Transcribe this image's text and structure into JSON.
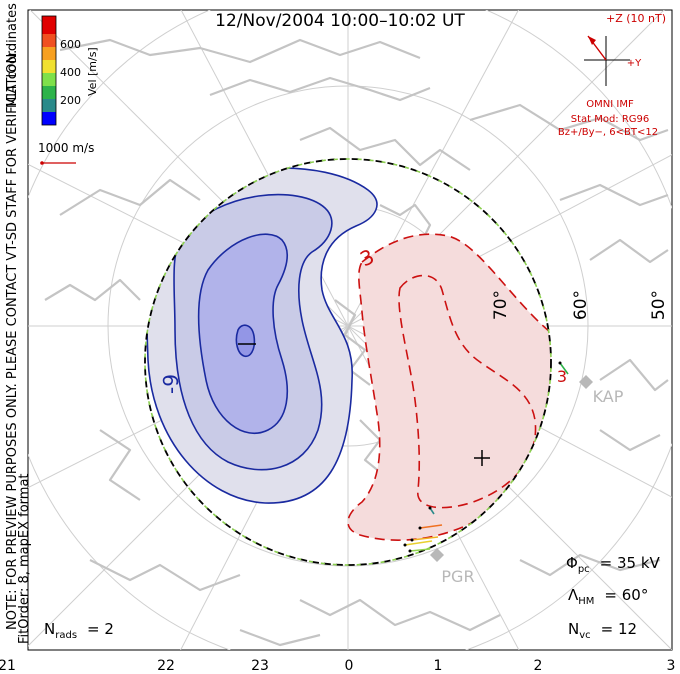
{
  "title": "12/Nov/2004  10:00–10:02 UT",
  "side_note": "NOTE: FOR PREVIEW PURPOSES ONLY. PLEASE CONTACT VT-SD STAFF FOR VERIFICATION.",
  "fit_order": "FitOrder: 8, mapEX format",
  "coords_label": "MLT coordinates",
  "colorbar": {
    "title": "Vel [m/s]",
    "ticks": [
      "600",
      "400",
      "200"
    ],
    "colors": [
      "#0000ff",
      "#2a8a8a",
      "#2db34a",
      "#7ee04a",
      "#f0e030",
      "#f7a020",
      "#f05020",
      "#e00000"
    ]
  },
  "vector_scale": "1000 m/s",
  "imf": {
    "z_label": "+Z (10 nT)",
    "y_label": "+Y",
    "source": "OMNI IMF",
    "model_line1": "Stat Mod: RG96",
    "model_line2": "Bz+/By−, 6<BT<12"
  },
  "lat_labels": [
    "50°",
    "60°",
    "70°"
  ],
  "contours": {
    "neg_label": "-9",
    "pos_label_top": "3",
    "pos_label_right": "3",
    "neg_color": "#1a2aa0",
    "pos_color": "#cc1111"
  },
  "stations": [
    "KAP",
    "PGR"
  ],
  "stats": {
    "phi_symbol": "Φ",
    "phi_sub": "pc",
    "phi_value": "= 35 kV",
    "lam_symbol": "Λ",
    "lam_sub": "HM",
    "lam_value": "= 60°",
    "nvc_symbol": "N",
    "nvc_sub": "vc",
    "nvc_value": "= 12",
    "nrads_symbol": "N",
    "nrads_sub": "rads",
    "nrads_value": "= 2"
  },
  "mlt_labels": [
    "21",
    "22",
    "23",
    "0",
    "1",
    "2",
    "3"
  ]
}
